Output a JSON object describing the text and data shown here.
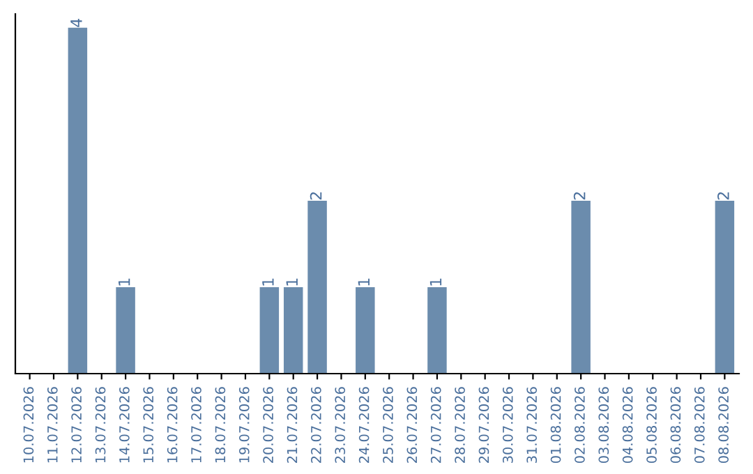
{
  "chart_data": {
    "type": "bar",
    "categories": [
      "10.07.2026",
      "11.07.2026",
      "12.07.2026",
      "13.07.2026",
      "14.07.2026",
      "15.07.2026",
      "16.07.2026",
      "17.07.2026",
      "18.07.2026",
      "19.07.2026",
      "20.07.2026",
      "21.07.2026",
      "22.07.2026",
      "23.07.2026",
      "24.07.2026",
      "25.07.2026",
      "26.07.2026",
      "27.07.2026",
      "28.07.2026",
      "29.07.2026",
      "30.07.2026",
      "31.07.2026",
      "01.08.2026",
      "02.08.2026",
      "03.08.2026",
      "04.08.2026",
      "05.08.2026",
      "06.08.2026",
      "07.08.2026",
      "08.08.2026"
    ],
    "values": [
      0,
      0,
      4,
      0,
      1,
      0,
      0,
      0,
      0,
      0,
      1,
      1,
      2,
      0,
      1,
      0,
      0,
      1,
      0,
      0,
      0,
      0,
      0,
      2,
      0,
      0,
      0,
      0,
      0,
      2
    ],
    "value_labels": [
      null,
      null,
      "4",
      null,
      "1",
      null,
      null,
      null,
      null,
      null,
      "1",
      "1",
      "2",
      null,
      "1",
      null,
      null,
      "1",
      null,
      null,
      null,
      null,
      null,
      "2",
      null,
      null,
      null,
      null,
      null,
      "2"
    ],
    "color": "#6b8cad",
    "tick_labels": "x"
  }
}
